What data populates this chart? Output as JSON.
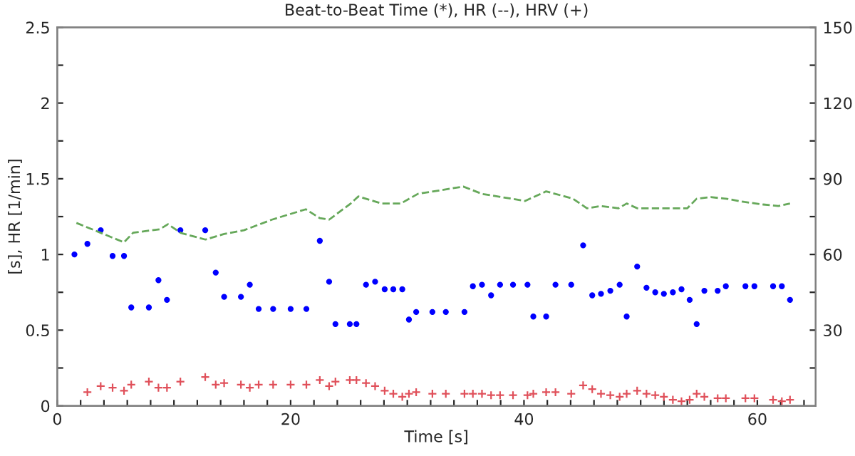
{
  "chart_data": {
    "type": "scatter",
    "title": "Beat-to-Beat Time (*), HR (--), HRV (+)",
    "xlabel": "Time [s]",
    "ylabel": "[s], HR [1/min]",
    "xlim": [
      0,
      65
    ],
    "xticks": [
      0,
      {
        "value": 2,
        "label": null
      },
      {
        "value": 4,
        "label": null
      },
      {
        "value": 6,
        "label": null
      },
      {
        "value": 8,
        "label": null
      },
      {
        "value": 10,
        "label": null
      },
      {
        "value": 12,
        "label": null
      },
      {
        "value": 14,
        "label": null
      },
      {
        "value": 16,
        "label": null
      },
      {
        "value": 18,
        "label": null
      },
      20,
      {
        "value": 22,
        "label": null
      },
      {
        "value": 24,
        "label": null
      },
      {
        "value": 26,
        "label": null
      },
      {
        "value": 28,
        "label": null
      },
      {
        "value": 30,
        "label": null
      },
      {
        "value": 32,
        "label": null
      },
      {
        "value": 34,
        "label": null
      },
      {
        "value": 36,
        "label": null
      },
      {
        "value": 38,
        "label": null
      },
      40,
      {
        "value": 42,
        "label": null
      },
      {
        "value": 44,
        "label": null
      },
      {
        "value": 46,
        "label": null
      },
      {
        "value": 48,
        "label": null
      },
      {
        "value": 50,
        "label": null
      },
      {
        "value": 52,
        "label": null
      },
      {
        "value": 54,
        "label": null
      },
      {
        "value": 56,
        "label": null
      },
      {
        "value": 58,
        "label": null
      },
      60,
      {
        "value": 62,
        "label": null
      },
      {
        "value": 64,
        "label": null
      }
    ],
    "ylim": [
      0,
      2.5
    ],
    "yticks": [
      0,
      {
        "value": 0.25,
        "label": null
      },
      0.5,
      {
        "value": 0.75,
        "label": null
      },
      1,
      {
        "value": 1.25,
        "label": null
      },
      1.5,
      {
        "value": 1.75,
        "label": null
      },
      2,
      {
        "value": 2.25,
        "label": null
      },
      2.5
    ],
    "y2lim": [
      0,
      150
    ],
    "y2ticks": [
      {
        "value": 15,
        "label": null
      },
      30,
      {
        "value": 45,
        "label": null
      },
      60,
      {
        "value": 75,
        "label": null
      },
      90,
      {
        "value": 105,
        "label": null
      },
      120,
      {
        "value": 135,
        "label": null
      },
      150
    ],
    "grid": false,
    "legend": false,
    "series": [
      {
        "marker": "circle",
        "color": "#0000ff",
        "x": [
          1.47,
          2.58,
          3.72,
          4.74,
          5.72,
          6.34,
          7.85,
          8.67,
          9.4,
          10.55,
          12.68,
          13.58,
          14.3,
          15.74,
          16.5,
          17.26,
          18.5,
          20.0,
          21.35,
          22.5,
          23.3,
          23.84,
          25.07,
          25.64,
          26.46,
          27.24,
          28.06,
          28.8,
          29.57,
          30.14,
          30.76,
          32.15,
          33.3,
          34.9,
          35.62,
          36.4,
          37.18,
          37.95,
          39.06,
          40.3,
          40.8,
          41.9,
          42.7,
          44.05,
          45.07,
          45.85,
          46.6,
          47.4,
          48.2,
          48.8,
          49.7,
          50.5,
          51.25,
          51.99,
          52.76,
          53.5,
          54.2,
          54.8,
          55.46,
          56.6,
          57.3,
          58.98,
          59.75,
          61.35,
          62.1,
          62.8
        ],
        "values": [
          1.0,
          1.07,
          1.16,
          0.99,
          0.99,
          0.65,
          0.65,
          0.83,
          0.7,
          1.16,
          1.16,
          0.88,
          0.72,
          0.72,
          0.8,
          0.64,
          0.64,
          0.64,
          0.64,
          1.09,
          0.82,
          0.54,
          0.54,
          0.54,
          0.8,
          0.82,
          0.77,
          0.77,
          0.77,
          0.57,
          0.62,
          0.62,
          0.62,
          0.62,
          0.79,
          0.8,
          0.73,
          0.8,
          0.8,
          0.8,
          0.59,
          0.59,
          0.8,
          0.8,
          1.06,
          0.73,
          0.74,
          0.76,
          0.8,
          0.59,
          0.92,
          0.78,
          0.75,
          0.74,
          0.75,
          0.77,
          0.7,
          0.54,
          0.76,
          0.76,
          0.79,
          0.79,
          0.79,
          0.79,
          0.79,
          0.7
        ]
      },
      {
        "type": "line",
        "axis": "y2",
        "line_style": "dashed",
        "marker": "none",
        "color": "#66a85a",
        "x": [
          1.64,
          5.72,
          6.5,
          8.8,
          9.49,
          10.6,
          12.7,
          14.3,
          16.0,
          18.4,
          21.3,
          22.5,
          23.3,
          25.15,
          25.8,
          27.8,
          29.45,
          30.9,
          34.8,
          36.4,
          40.1,
          41.9,
          44.2,
          45.4,
          46.6,
          48.1,
          48.8,
          49.7,
          54.0,
          54.8,
          56.0,
          57.3,
          58.9,
          60.5,
          61.8,
          62.8
        ],
        "values": [
          72.5,
          64.8,
          68.6,
          70,
          72,
          68.5,
          65.9,
          68.1,
          69.6,
          73.8,
          77.9,
          74.4,
          73.8,
          80.2,
          83,
          80.2,
          80.2,
          84,
          86.9,
          84,
          81.2,
          85,
          82.1,
          78.3,
          79.2,
          78.3,
          80.2,
          78.3,
          78.3,
          82.1,
          82.7,
          82.1,
          80.8,
          79.8,
          79.2,
          80.2
        ]
      },
      {
        "marker": "cross",
        "color": "#e0505a",
        "x": [
          2.58,
          3.72,
          4.74,
          5.72,
          6.34,
          7.85,
          8.67,
          9.4,
          10.55,
          12.68,
          13.58,
          14.3,
          15.74,
          16.5,
          17.26,
          18.5,
          20.0,
          21.35,
          22.5,
          23.3,
          23.84,
          25.07,
          25.64,
          26.46,
          27.24,
          28.06,
          28.8,
          29.57,
          30.14,
          30.76,
          32.15,
          33.3,
          34.9,
          35.62,
          36.4,
          37.18,
          37.95,
          39.06,
          40.3,
          40.8,
          41.9,
          42.7,
          44.05,
          45.07,
          45.85,
          46.6,
          47.4,
          48.2,
          48.8,
          49.7,
          50.5,
          51.25,
          51.99,
          52.76,
          53.5,
          54.2,
          54.8,
          55.46,
          56.6,
          57.3,
          58.98,
          59.75,
          61.35,
          62.1,
          62.8
        ],
        "values": [
          0.09,
          0.13,
          0.12,
          0.1,
          0.14,
          0.16,
          0.12,
          0.12,
          0.16,
          0.19,
          0.14,
          0.15,
          0.14,
          0.12,
          0.14,
          0.14,
          0.14,
          0.14,
          0.17,
          0.13,
          0.16,
          0.17,
          0.17,
          0.15,
          0.13,
          0.1,
          0.08,
          0.06,
          0.08,
          0.09,
          0.08,
          0.08,
          0.08,
          0.08,
          0.08,
          0.07,
          0.07,
          0.07,
          0.07,
          0.08,
          0.09,
          0.09,
          0.08,
          0.135,
          0.11,
          0.08,
          0.07,
          0.06,
          0.08,
          0.1,
          0.08,
          0.07,
          0.06,
          0.04,
          0.03,
          0.04,
          0.08,
          0.06,
          0.05,
          0.05,
          0.05,
          0.05,
          0.04,
          0.03,
          0.04
        ]
      }
    ]
  }
}
